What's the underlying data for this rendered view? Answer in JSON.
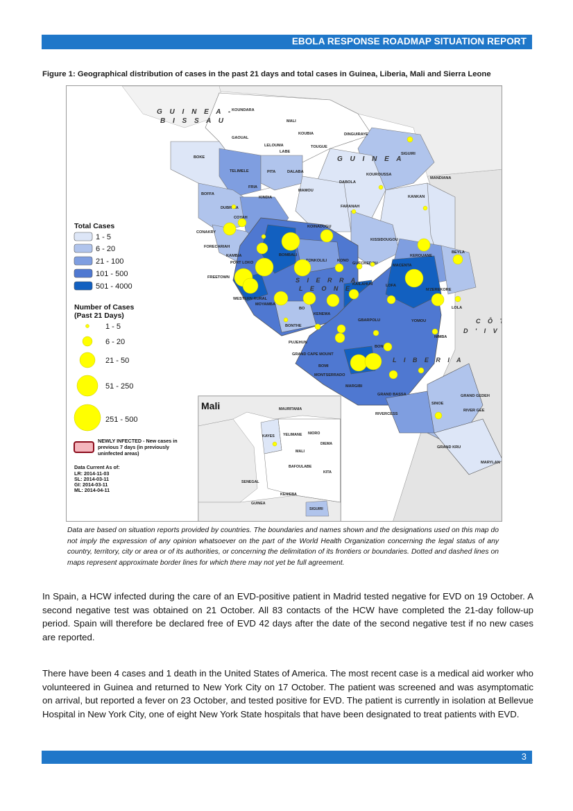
{
  "header": {
    "title": "EBOLA RESPONSE ROADMAP SITUATION REPORT"
  },
  "figure": {
    "caption": "Figure 1: Geographical distribution of cases in the past 21 days and total cases in Guinea, Liberia, Mali and Sierra Leone",
    "countries": {
      "guinea_bissau_1": "G U I N E A -",
      "guinea_bissau_2": "B I S S A U",
      "guinea": "G U I N E A",
      "sierra_1": "S I E R R A",
      "sierra_2": "L E O N E",
      "liberia": "L I B E R I A",
      "cote_1": "C Ô T",
      "cote_2": "D ' I V O I"
    },
    "regions": {
      "koundara": "KOUNDARA",
      "mali": "MALI",
      "gaoual": "GAOUAL",
      "koubia": "KOUBIA",
      "dinguiraye": "DINGUIRAYE",
      "lelouma": "LELOUMA",
      "labe": "LABE",
      "tougue": "TOUGUE",
      "boke": "BOKE",
      "siguiri": "SIGUIRI",
      "telimele": "TELIMELE",
      "pita": "PITA",
      "dalaba": "DALABA",
      "kouroussa": "KOUROUSSA",
      "mandiana": "MANDIANA",
      "fria": "FRIA",
      "dabola": "DABOLA",
      "mamou": "MAMOU",
      "boffa": "BOFFA",
      "kindia": "KINDIA",
      "kankan": "KANKAN",
      "faranah": "FARANAH",
      "dubreka": "DUBR  KA",
      "coyah": "COYAH",
      "conakry": "CONAKRY",
      "koinadugu": "KOINADUGU",
      "forecariah": "FORECARIAH",
      "kissidougou": "KISSIDOUGOU",
      "kambia": "KAMBIA",
      "port_loko": "PORT LOKO",
      "kerouane": "KEROUANE",
      "beyla": "BEYLA",
      "bombali": "BOMBALI",
      "tonkolili": "TONKOLILI",
      "kono": "KONO",
      "gueckedou": "GUECKEDOU",
      "macenta": "MACENTA",
      "freetown": "FREETOWN",
      "kailahun": "KAILAHUN",
      "lofa": "LOFA",
      "nzerekore": "N'ZEREKORE",
      "western_rural": "WESTERN RURAL",
      "moyamba": "MOYAMBA",
      "bo": "BO",
      "kenema": "KENEMA",
      "lola": "LOLA",
      "gbarpolu": "GBARPOLU",
      "yomou": "YOMOU",
      "bonthe": "BONTHE",
      "pujehun": "PUJEHUN",
      "nimba": "NIMBA",
      "bong": "BONG",
      "grand_cape_mount": "GRAND CAPE MOUNT",
      "bomi": "BOMI",
      "montserrado": "MONTSERRADO",
      "margibi": "MARGIBI",
      "grand_bassa": "GRAND BASSA",
      "grand_gedeh": "GRAND GEDEH",
      "rivercess": "RIVERCESS",
      "sinoe": "SINOE",
      "river_gee": "RIVER GEE",
      "grand_kru": "GRAND KRU",
      "maryland": "MARYLAN"
    },
    "legend": {
      "total_title": "Total Cases",
      "total_items": [
        "1 - 5",
        "6 - 20",
        "21 - 100",
        "101 - 500",
        "501 - 4000"
      ],
      "total_colors": [
        "#dde6f7",
        "#b0c4ec",
        "#7f9ee0",
        "#4f78d1",
        "#1260c0"
      ],
      "recent_title_1": "Number of Cases",
      "recent_title_2": "(Past 21 Days)",
      "recent_items": [
        "1 - 5",
        "6 - 20",
        "21 - 50",
        "51 - 250",
        "251 - 500"
      ],
      "bubble_color": "#ffff00",
      "newly_label_1": "NEWLY INFECTED - New cases in",
      "newly_label_2": "previous 7 days (in previously",
      "newly_label_3": "uninfected areas)",
      "data_current_title": "Data Current As of:",
      "data_current": [
        "LR:  2014-11-03",
        "SL:  2014-03-11",
        "GI:  2014-03-11",
        "ML:  2014-04-11"
      ]
    },
    "inset": {
      "title": "Mali",
      "mauritania": "MAURITANIA",
      "kayes": "KAYES",
      "yelimane": "YELIMANE",
      "nioro": "NIORO",
      "diema": "DIEMA",
      "mali": "MALI",
      "bafoulabe": "BAFOULABE",
      "kita": "KITA",
      "senegal": "SENEGAL",
      "kenieba": "KENIEBA",
      "guinea": "GUINEA",
      "siguiri": "SIGUIRI"
    }
  },
  "disclaimer": "Data are based on situation reports provided by countries. The boundaries and names shown and the designations used on this map do not imply the expression of any opinion whatsoever on the part of the World Health Organization concerning the legal status of any country, territory, city or area or of its authorities, or concerning the delimitation of its frontiers or boundaries. Dotted and dashed lines on maps represent approximate border lines for which there may not yet be full agreement.",
  "paragraphs": {
    "spain": "In Spain, a HCW infected during the care of an EVD-positive patient in Madrid tested negative for EVD on 19 October. A second negative test was obtained on 21 October. All 83 contacts of the HCW have completed the 21-day follow-up period. Spain will therefore be declared free of EVD 42 days after the date of the second negative test if no new cases are reported.",
    "usa": "There have been 4 cases and 1 death in the United States of America. The most recent case is a medical aid worker who volunteered in Guinea and returned to New York City on 17 October. The patient was screened and was asymptomatic on arrival, but reported a fever on 23 October, and tested positive for EVD. The patient is currently in isolation at Bellevue Hospital in New York City, one of eight New York State hospitals that have been designated to treat patients with EVD."
  },
  "footer": {
    "page_number": "3"
  }
}
